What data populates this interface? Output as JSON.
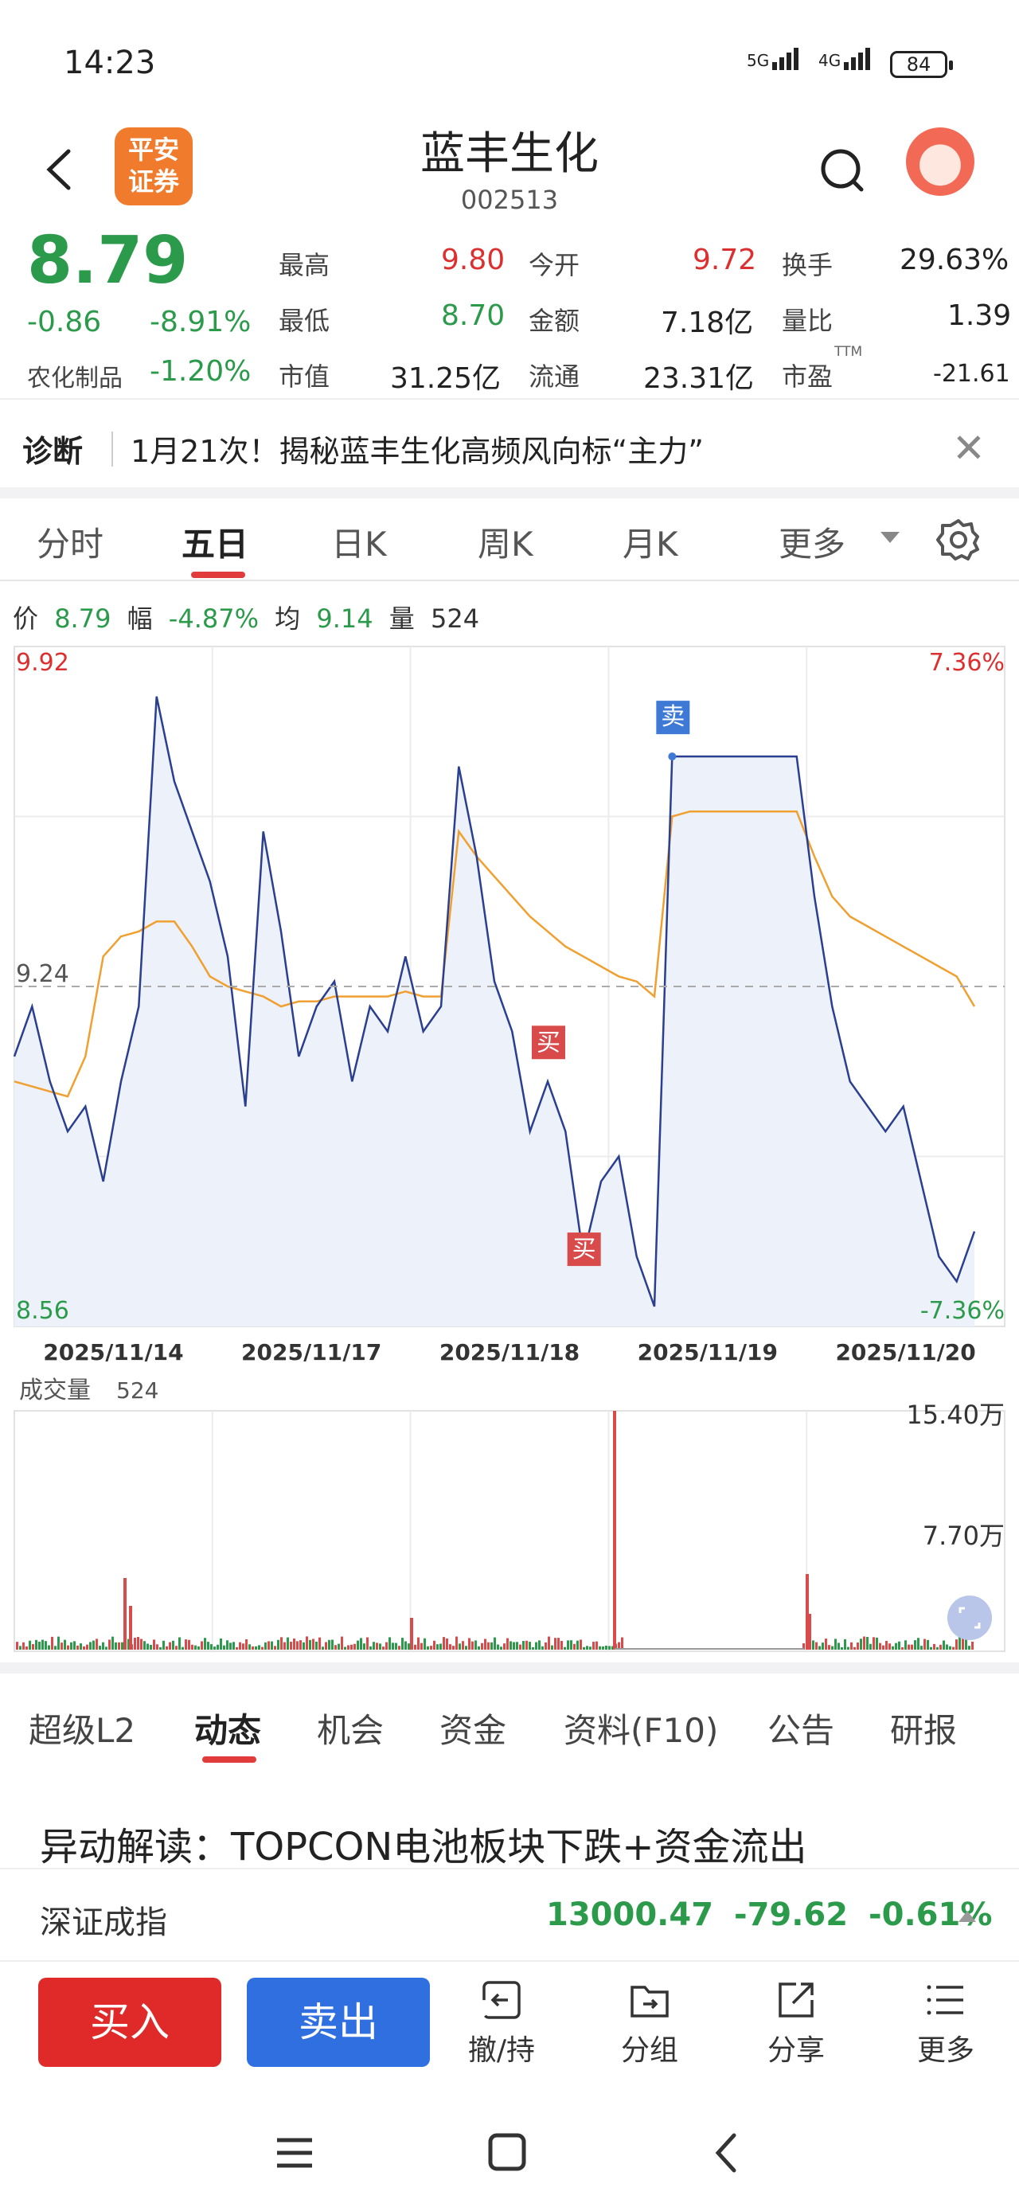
{
  "status": {
    "time": "14:23",
    "net1": "5G",
    "net2": "4G",
    "battery": "84"
  },
  "header": {
    "broker_logo": "平安证券",
    "broker_logo_line1": "平安",
    "broker_logo_line2": "证券",
    "stock_name": "蓝丰生化",
    "stock_code": "002513"
  },
  "quote": {
    "price": "8.79",
    "change": "-0.86",
    "change_pct": "-8.91%",
    "sector": "农化制品",
    "sector_pct": "-1.20%",
    "high_label": "最高",
    "high": "9.80",
    "low_label": "最低",
    "low": "8.70",
    "mcap_label": "市值",
    "mcap": "31.25亿",
    "open_label": "今开",
    "open": "9.72",
    "amount_label": "金额",
    "amount": "7.18亿",
    "float_label": "流通",
    "float": "23.31亿",
    "turnover_label": "换手",
    "turnover": "29.63%",
    "vol_ratio_label": "量比",
    "vol_ratio": "1.39",
    "pe_label": "市盈",
    "pe_sup": "TTM",
    "pe": "-21.61"
  },
  "diagnosis": {
    "label": "诊断",
    "text": "1月21次！揭秘蓝丰生化高频风向标“主力”"
  },
  "chart_tabs": [
    "分时",
    "五日",
    "日K",
    "周K",
    "月K",
    "更多"
  ],
  "chart_tab_active": "五日",
  "info_line": {
    "price_label": "价",
    "price": "8.79",
    "amp_label": "幅",
    "amp": "-4.87%",
    "avg_label": "均",
    "avg": "9.14",
    "vol_label": "量",
    "vol": "524"
  },
  "chart_data": {
    "type": "line",
    "y_max_label": "9.92",
    "y_mid_label": "9.24",
    "y_min_label": "8.56",
    "pct_max_label": "7.36%",
    "pct_min_label": "-7.36%",
    "ylim": [
      8.56,
      9.92
    ],
    "prev_close": 9.24,
    "x_labels": [
      "2025/11/14",
      "2025/11/17",
      "2025/11/18",
      "2025/11/19",
      "2025/11/20"
    ],
    "marker_sell": "卖",
    "marker_buy": "买",
    "series": [
      {
        "name": "价",
        "color": "#2a3f8f",
        "values": [
          9.1,
          9.2,
          9.05,
          8.95,
          9.0,
          8.85,
          9.05,
          9.2,
          9.82,
          9.65,
          9.55,
          9.45,
          9.3,
          9.0,
          9.55,
          9.35,
          9.1,
          9.2,
          9.25,
          9.05,
          9.2,
          9.15,
          9.3,
          9.15,
          9.2,
          9.68,
          9.5,
          9.25,
          9.15,
          8.95,
          9.05,
          8.95,
          8.7,
          8.85,
          8.9,
          8.7,
          8.6,
          9.7,
          9.7,
          9.7,
          9.7,
          9.7,
          9.7,
          9.7,
          9.7,
          9.42,
          9.2,
          9.05,
          9.0,
          8.95,
          9.0,
          8.85,
          8.7,
          8.65,
          8.75
        ]
      },
      {
        "name": "均",
        "color": "#f0a030",
        "values": [
          9.05,
          9.04,
          9.03,
          9.02,
          9.1,
          9.3,
          9.34,
          9.35,
          9.37,
          9.37,
          9.32,
          9.26,
          9.24,
          9.23,
          9.22,
          9.2,
          9.21,
          9.21,
          9.22,
          9.22,
          9.22,
          9.22,
          9.23,
          9.22,
          9.22,
          9.55,
          9.5,
          9.46,
          9.42,
          9.38,
          9.35,
          9.32,
          9.3,
          9.28,
          9.26,
          9.25,
          9.22,
          9.58,
          9.59,
          9.59,
          9.59,
          9.59,
          9.59,
          9.59,
          9.59,
          9.5,
          9.42,
          9.38,
          9.36,
          9.34,
          9.32,
          9.3,
          9.28,
          9.26,
          9.2
        ]
      }
    ],
    "volume": {
      "label": "成交量",
      "value": "524",
      "max_label": "15.40万",
      "mid_label": "7.70万",
      "ylim": [
        0,
        15.4
      ],
      "unit": "万"
    }
  },
  "lower_tabs": [
    "超级L2",
    "动态",
    "机会",
    "资金",
    "资料(F10)",
    "公告",
    "研报"
  ],
  "lower_tab_active": "动态",
  "news_title": "异动解读：TOPCON电池板块下跌+资金流出",
  "index": {
    "name": "深证成指",
    "value": "13000.47",
    "change": "-79.62",
    "pct": "-0.61%"
  },
  "actions": {
    "buy": "买入",
    "sell": "卖出",
    "cancel": "撤/持",
    "group": "分组",
    "share": "分享",
    "more": "更多"
  }
}
